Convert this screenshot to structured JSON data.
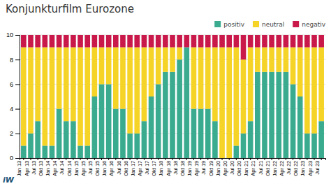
{
  "chart_data": {
    "type": "bar",
    "title": "Konjunkturfilm Eurozone",
    "categories": [
      "Jan 13",
      "Apr 13",
      "Jul 13",
      "Okt 13",
      "Jan 14",
      "Apr 14",
      "Jul 14",
      "Okt 14",
      "Jan 15",
      "Apr 15",
      "Jul 15",
      "Okt 15",
      "Jan 16",
      "Apr 16",
      "Jul 16",
      "Okt 16",
      "Jan 17",
      "Apr 17",
      "Jul 17",
      "Okt 17",
      "Jan 18",
      "Apr 18",
      "Jul 18",
      "Okt 18",
      "Jan 19",
      "Apr 19",
      "Jul 19",
      "Okt 19",
      "Jan 20",
      "Apr 20",
      "Jul 20",
      "Okt 20",
      "Jan 21",
      "Apr 21",
      "Jul 21",
      "Okt 21",
      "Jan 22",
      "Apr 22",
      "Jul 22",
      "Okt 22",
      "Jan 23",
      "Apr 23",
      "Jul 23"
    ],
    "series": [
      {
        "name": "positiv",
        "color": "#3aab8e",
        "values": [
          1,
          2,
          3,
          1,
          1,
          4,
          3,
          3,
          1,
          1,
          5,
          6,
          6,
          4,
          4,
          2,
          2,
          3,
          5,
          6,
          7,
          7,
          8,
          9,
          4,
          4,
          4,
          3,
          0,
          0,
          1,
          2,
          3,
          7,
          7,
          7,
          7,
          7,
          6,
          5,
          2,
          2,
          3
        ]
      },
      {
        "name": "neutral",
        "color": "#f5d327",
        "values": [
          8,
          7,
          6,
          8,
          8,
          5,
          6,
          6,
          8,
          8,
          4,
          3,
          3,
          5,
          5,
          7,
          7,
          6,
          4,
          3,
          2,
          2,
          1,
          0,
          5,
          5,
          5,
          6,
          9,
          9,
          8,
          6,
          6,
          2,
          2,
          2,
          2,
          2,
          3,
          4,
          7,
          7,
          6
        ]
      },
      {
        "name": "negativ",
        "color": "#c9184a",
        "values": [
          1,
          1,
          1,
          1,
          1,
          1,
          1,
          1,
          1,
          1,
          1,
          1,
          1,
          1,
          1,
          1,
          1,
          1,
          1,
          1,
          1,
          1,
          1,
          1,
          1,
          1,
          1,
          1,
          1,
          1,
          1,
          2,
          1,
          1,
          1,
          1,
          1,
          1,
          1,
          1,
          1,
          1,
          1
        ]
      }
    ],
    "ylim": [
      0,
      10
    ],
    "yticks": [
      0,
      2,
      4,
      6,
      8,
      10
    ],
    "grid": true,
    "stacked": true,
    "legend": "top",
    "annotations": [
      "iW"
    ]
  }
}
